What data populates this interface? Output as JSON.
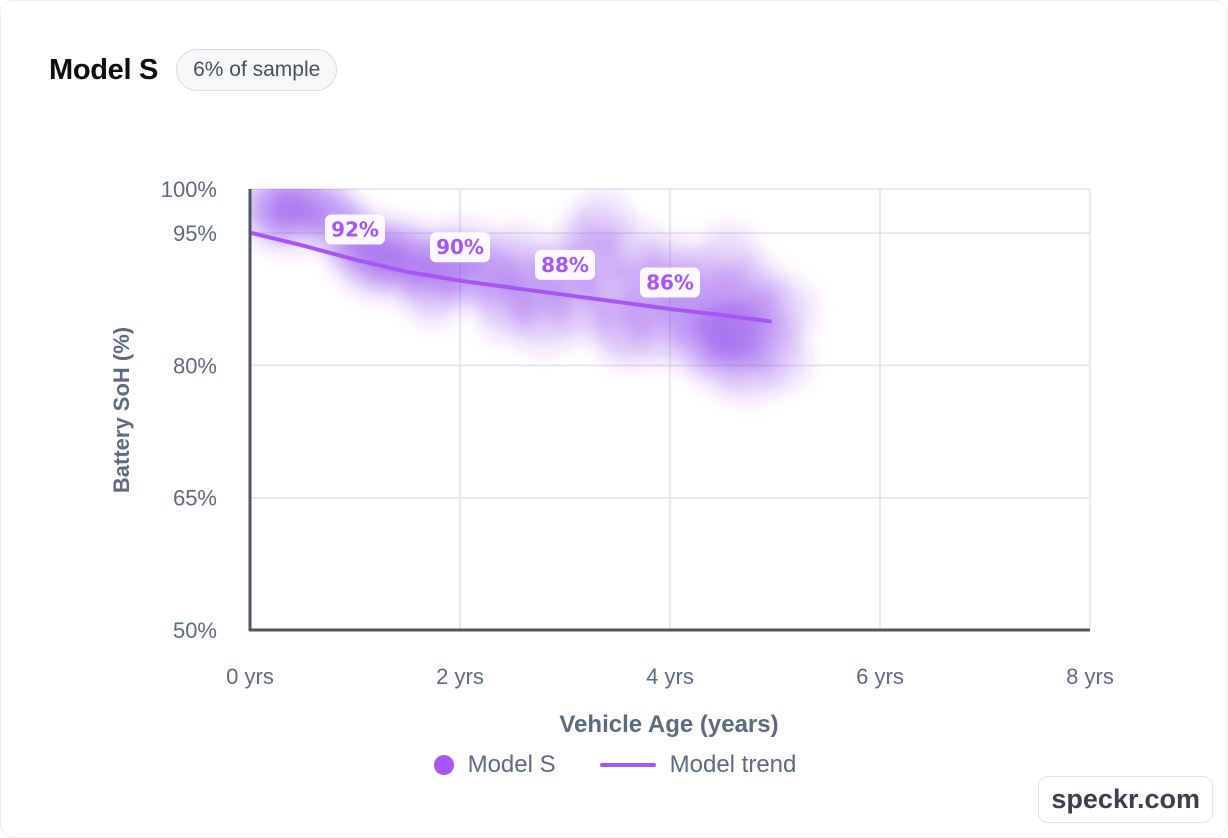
{
  "header": {
    "title": "Model S",
    "badge": "6% of sample"
  },
  "legend": {
    "points_label": "Model S",
    "trend_label": "Model trend"
  },
  "watermark": "speckr.com",
  "colors": {
    "accent": "#a855f7",
    "density": "#7c2ae8",
    "axis": "#4b5563",
    "grid": "#dfe3ea",
    "tick_text": "#5d6b82"
  },
  "chart_data": {
    "type": "scatter",
    "title": "",
    "xlabel": "Vehicle Age (years)",
    "ylabel": "Battery SoH (%)",
    "xlim": [
      0,
      8
    ],
    "ylim": [
      50,
      100
    ],
    "x_ticks": [
      0,
      2,
      4,
      6,
      8
    ],
    "x_tick_labels": [
      "0 yrs",
      "2 yrs",
      "4 yrs",
      "6 yrs",
      "8 yrs"
    ],
    "y_ticks": [
      100,
      95,
      80,
      65,
      50
    ],
    "y_tick_labels": [
      "100%",
      "95%",
      "80%",
      "65%",
      "50%"
    ],
    "grid": true,
    "legend_position": "bottom",
    "series": [
      {
        "name": "Model S",
        "kind": "density",
        "points": [
          [
            0.15,
            98.8
          ],
          [
            0.3,
            98.3
          ],
          [
            0.45,
            97.8
          ],
          [
            0.55,
            98.9
          ],
          [
            0.7,
            98.4
          ],
          [
            0.4,
            96.2
          ],
          [
            0.2,
            96.8
          ],
          [
            0.8,
            96.3
          ],
          [
            0.9,
            95.2
          ],
          [
            1.0,
            94.5
          ],
          [
            1.05,
            92.8
          ],
          [
            1.15,
            91.2
          ],
          [
            1.25,
            93.6
          ],
          [
            1.3,
            92.2
          ],
          [
            1.4,
            90.8
          ],
          [
            1.5,
            93.2
          ],
          [
            1.6,
            91.8
          ],
          [
            1.7,
            89.8
          ],
          [
            1.75,
            88.0
          ],
          [
            1.85,
            92.2
          ],
          [
            1.95,
            90.4
          ],
          [
            2.05,
            93.0
          ],
          [
            2.15,
            90.0
          ],
          [
            2.3,
            91.4
          ],
          [
            2.4,
            88.4
          ],
          [
            2.45,
            86.2
          ],
          [
            2.55,
            92.4
          ],
          [
            2.65,
            89.8
          ],
          [
            2.75,
            87.4
          ],
          [
            2.8,
            84.8
          ],
          [
            2.95,
            91.0
          ],
          [
            3.05,
            89.0
          ],
          [
            3.15,
            86.2
          ],
          [
            3.2,
            93.8
          ],
          [
            3.3,
            91.8
          ],
          [
            3.35,
            96.2
          ],
          [
            3.45,
            88.2
          ],
          [
            3.5,
            85.0
          ],
          [
            3.6,
            83.2
          ],
          [
            3.65,
            92.8
          ],
          [
            3.75,
            89.6
          ],
          [
            3.85,
            86.8
          ],
          [
            3.9,
            83.8
          ],
          [
            4.0,
            91.2
          ],
          [
            4.05,
            88.8
          ],
          [
            4.15,
            85.6
          ],
          [
            4.25,
            82.4
          ],
          [
            4.3,
            89.8
          ],
          [
            4.35,
            86.8
          ],
          [
            4.45,
            84.0
          ],
          [
            4.5,
            80.4
          ],
          [
            4.55,
            92.4
          ],
          [
            4.6,
            88.2
          ],
          [
            4.65,
            85.0
          ],
          [
            4.7,
            82.2
          ],
          [
            4.75,
            79.2
          ],
          [
            4.8,
            89.0
          ],
          [
            4.85,
            86.2
          ],
          [
            4.95,
            83.2
          ],
          [
            5.05,
            80.6
          ],
          [
            5.1,
            86.4
          ],
          [
            4.4,
            83.0
          ],
          [
            4.6,
            83.6
          ]
        ]
      },
      {
        "name": "Model trend",
        "kind": "line",
        "x": [
          0.02,
          0.5,
          1.0,
          1.5,
          2.0,
          2.5,
          3.0,
          3.5,
          4.0,
          4.5,
          4.95
        ],
        "y": [
          95.0,
          93.6,
          92.0,
          90.6,
          89.6,
          88.8,
          88.0,
          87.2,
          86.4,
          85.7,
          85.0
        ]
      }
    ],
    "annotations": [
      {
        "x": 1.0,
        "y": 92,
        "label": "92%"
      },
      {
        "x": 2.0,
        "y": 90,
        "label": "90%"
      },
      {
        "x": 3.0,
        "y": 88,
        "label": "88%"
      },
      {
        "x": 4.0,
        "y": 86,
        "label": "86%"
      }
    ]
  }
}
